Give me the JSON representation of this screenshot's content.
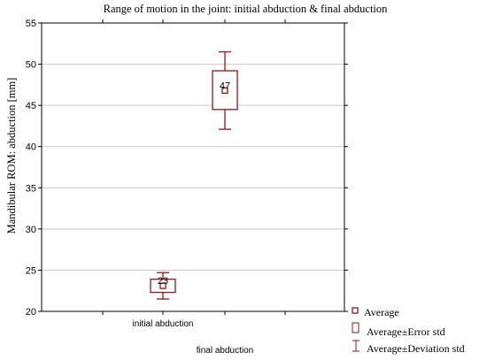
{
  "chart_data": {
    "type": "box",
    "title": "Range of motion in the joint: initial abduction & final abduction",
    "ylabel": "Mandibular ROM: abduction [mm]",
    "xlabel": "",
    "ylim": [
      20,
      55
    ],
    "yticks": [
      20,
      25,
      30,
      35,
      40,
      45,
      50,
      55
    ],
    "grid": true,
    "categories": [
      "initial abduction",
      "final abduction"
    ],
    "series": [
      {
        "category": "initial abduction",
        "mean": 23.1,
        "mean_label": "23",
        "error_low": 22.3,
        "error_high": 23.9,
        "dev_low": 21.5,
        "dev_high": 24.7
      },
      {
        "category": "final abduction",
        "mean": 46.8,
        "mean_label": "47",
        "error_low": 44.5,
        "error_high": 49.2,
        "dev_low": 42.1,
        "dev_high": 51.5
      }
    ],
    "legend": {
      "placement": "bottom-right",
      "entries": [
        "Average",
        "Average±Error std",
        "Average±Deviation std"
      ]
    },
    "colors": {
      "series": "#8b1a1a",
      "grid": "#c8c8c8",
      "axis": "#000000"
    }
  }
}
